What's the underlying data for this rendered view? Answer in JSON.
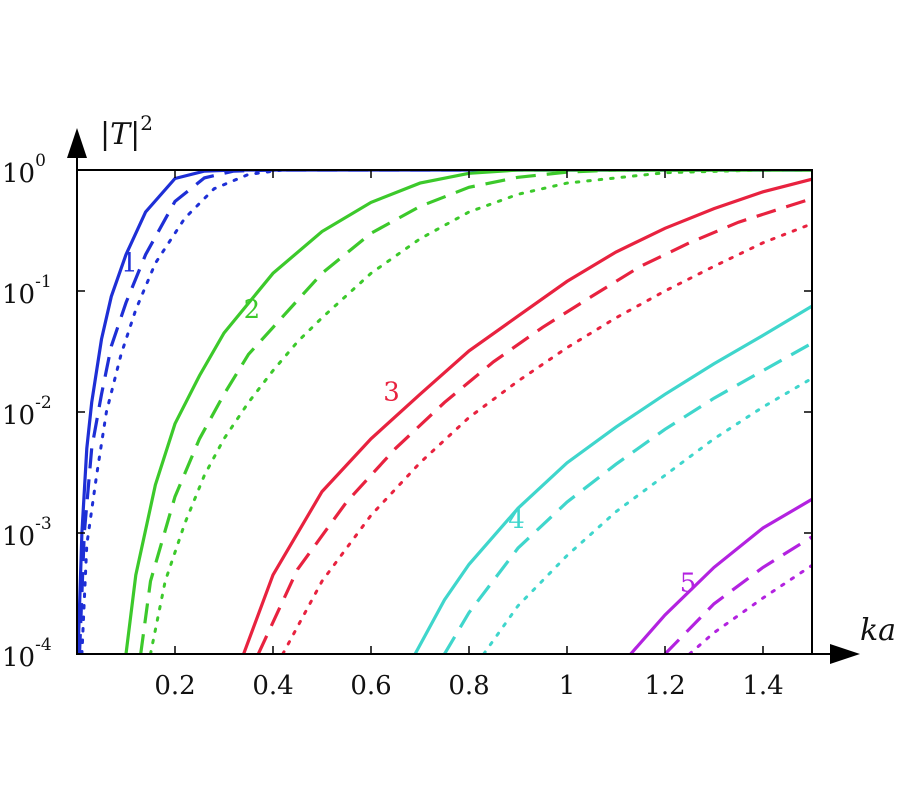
{
  "chart_data": {
    "type": "line",
    "title": "",
    "xlabel": "ka",
    "ylabel_main": "|T|",
    "ylabel_sup": "2",
    "xlim": [
      0.0,
      1.5
    ],
    "ylim": [
      0.0001,
      1
    ],
    "yscale": "log",
    "grid": false,
    "x_ticks": [
      {
        "value": 0.2,
        "label": "0.2"
      },
      {
        "value": 0.4,
        "label": "0.4"
      },
      {
        "value": 0.6,
        "label": "0.6"
      },
      {
        "value": 0.8,
        "label": "0.8"
      },
      {
        "value": 1.0,
        "label": "1"
      },
      {
        "value": 1.2,
        "label": "1.2"
      },
      {
        "value": 1.4,
        "label": "1.4"
      }
    ],
    "y_ticks": [
      {
        "value": 1,
        "base": "10",
        "exp": "0"
      },
      {
        "value": 0.1,
        "base": "10",
        "exp": "-1"
      },
      {
        "value": 0.01,
        "base": "10",
        "exp": "-2"
      },
      {
        "value": 0.001,
        "base": "10",
        "exp": "-3"
      },
      {
        "value": 0.0001,
        "base": "10",
        "exp": "-4"
      }
    ],
    "groups": [
      {
        "label": "1",
        "color": "#1e2fd6",
        "label_x": 0.09,
        "label_y": 0.145,
        "series": [
          {
            "style": "solid",
            "points": [
              [
                0.002,
                0.0001
              ],
              [
                0.01,
                0.001
              ],
              [
                0.02,
                0.005
              ],
              [
                0.03,
                0.012
              ],
              [
                0.05,
                0.04
              ],
              [
                0.07,
                0.09
              ],
              [
                0.1,
                0.2
              ],
              [
                0.14,
                0.45
              ],
              [
                0.2,
                0.85
              ],
              [
                0.26,
                0.98
              ],
              [
                0.32,
                1.0
              ],
              [
                1.5,
                1.0
              ]
            ]
          },
          {
            "style": "dashed",
            "points": [
              [
                0.005,
                0.0001
              ],
              [
                0.015,
                0.001
              ],
              [
                0.03,
                0.005
              ],
              [
                0.05,
                0.014
              ],
              [
                0.07,
                0.035
              ],
              [
                0.1,
                0.08
              ],
              [
                0.14,
                0.2
              ],
              [
                0.2,
                0.55
              ],
              [
                0.26,
                0.86
              ],
              [
                0.32,
                0.98
              ],
              [
                0.4,
                1.0
              ],
              [
                1.5,
                1.0
              ]
            ]
          },
          {
            "style": "dotted",
            "points": [
              [
                0.01,
                0.0001
              ],
              [
                0.02,
                0.0008
              ],
              [
                0.04,
                0.003
              ],
              [
                0.06,
                0.01
              ],
              [
                0.09,
                0.03
              ],
              [
                0.12,
                0.07
              ],
              [
                0.16,
                0.17
              ],
              [
                0.22,
                0.4
              ],
              [
                0.28,
                0.7
              ],
              [
                0.35,
                0.92
              ],
              [
                0.42,
                1.0
              ],
              [
                1.5,
                1.0
              ]
            ]
          }
        ]
      },
      {
        "label": "2",
        "color": "#3cc92b",
        "label_x": 0.34,
        "label_y": 0.06,
        "series": [
          {
            "style": "solid",
            "points": [
              [
                0.1,
                0.0001
              ],
              [
                0.12,
                0.00045
              ],
              [
                0.16,
                0.0025
              ],
              [
                0.2,
                0.008
              ],
              [
                0.25,
                0.02
              ],
              [
                0.3,
                0.045
              ],
              [
                0.4,
                0.14
              ],
              [
                0.5,
                0.31
              ],
              [
                0.6,
                0.54
              ],
              [
                0.7,
                0.78
              ],
              [
                0.8,
                0.94
              ],
              [
                0.9,
                1.0
              ],
              [
                1.5,
                1.0
              ]
            ]
          },
          {
            "style": "dashed",
            "points": [
              [
                0.13,
                0.0001
              ],
              [
                0.15,
                0.0004
              ],
              [
                0.2,
                0.002
              ],
              [
                0.25,
                0.006
              ],
              [
                0.3,
                0.014
              ],
              [
                0.35,
                0.03
              ],
              [
                0.4,
                0.05
              ],
              [
                0.5,
                0.14
              ],
              [
                0.6,
                0.3
              ],
              [
                0.7,
                0.5
              ],
              [
                0.8,
                0.72
              ],
              [
                0.9,
                0.87
              ],
              [
                1.0,
                0.96
              ],
              [
                1.1,
                1.0
              ],
              [
                1.5,
                1.0
              ]
            ]
          },
          {
            "style": "dotted",
            "points": [
              [
                0.15,
                0.0001
              ],
              [
                0.18,
                0.0004
              ],
              [
                0.22,
                0.0012
              ],
              [
                0.26,
                0.003
              ],
              [
                0.3,
                0.006
              ],
              [
                0.35,
                0.012
              ],
              [
                0.4,
                0.022
              ],
              [
                0.45,
                0.038
              ],
              [
                0.5,
                0.06
              ],
              [
                0.6,
                0.14
              ],
              [
                0.7,
                0.27
              ],
              [
                0.8,
                0.45
              ],
              [
                0.9,
                0.63
              ],
              [
                1.0,
                0.78
              ],
              [
                1.2,
                0.95
              ],
              [
                1.4,
                1.0
              ],
              [
                1.5,
                1.0
              ]
            ]
          }
        ]
      },
      {
        "label": "3",
        "color": "#e8223f",
        "label_x": 0.625,
        "label_y": 0.0125,
        "series": [
          {
            "style": "solid",
            "points": [
              [
                0.34,
                0.0001
              ],
              [
                0.4,
                0.00045
              ],
              [
                0.5,
                0.0022
              ],
              [
                0.6,
                0.006
              ],
              [
                0.7,
                0.014
              ],
              [
                0.8,
                0.032
              ],
              [
                0.9,
                0.062
              ],
              [
                1.0,
                0.12
              ],
              [
                1.1,
                0.21
              ],
              [
                1.2,
                0.33
              ],
              [
                1.3,
                0.48
              ],
              [
                1.4,
                0.66
              ],
              [
                1.5,
                0.84
              ]
            ]
          },
          {
            "style": "dashed",
            "points": [
              [
                0.37,
                0.0001
              ],
              [
                0.45,
                0.0005
              ],
              [
                0.55,
                0.0018
              ],
              [
                0.65,
                0.005
              ],
              [
                0.75,
                0.012
              ],
              [
                0.85,
                0.026
              ],
              [
                0.95,
                0.05
              ],
              [
                1.05,
                0.09
              ],
              [
                1.15,
                0.16
              ],
              [
                1.25,
                0.25
              ],
              [
                1.35,
                0.37
              ],
              [
                1.45,
                0.5
              ],
              [
                1.5,
                0.58
              ]
            ]
          },
          {
            "style": "dotted",
            "points": [
              [
                0.42,
                0.0001
              ],
              [
                0.5,
                0.0004
              ],
              [
                0.6,
                0.0014
              ],
              [
                0.7,
                0.0038
              ],
              [
                0.8,
                0.009
              ],
              [
                0.9,
                0.018
              ],
              [
                1.0,
                0.034
              ],
              [
                1.1,
                0.06
              ],
              [
                1.2,
                0.1
              ],
              [
                1.3,
                0.16
              ],
              [
                1.4,
                0.25
              ],
              [
                1.5,
                0.36
              ]
            ]
          }
        ]
      },
      {
        "label": "4",
        "color": "#3fd6cc",
        "label_x": 0.88,
        "label_y": 0.0011,
        "series": [
          {
            "style": "solid",
            "points": [
              [
                0.69,
                0.0001
              ],
              [
                0.75,
                0.00028
              ],
              [
                0.8,
                0.00055
              ],
              [
                0.9,
                0.0016
              ],
              [
                1.0,
                0.0038
              ],
              [
                1.1,
                0.0075
              ],
              [
                1.2,
                0.014
              ],
              [
                1.3,
                0.025
              ],
              [
                1.4,
                0.043
              ],
              [
                1.5,
                0.075
              ]
            ]
          },
          {
            "style": "dashed",
            "points": [
              [
                0.75,
                0.0001
              ],
              [
                0.8,
                0.00022
              ],
              [
                0.9,
                0.00075
              ],
              [
                1.0,
                0.0018
              ],
              [
                1.1,
                0.0037
              ],
              [
                1.2,
                0.0072
              ],
              [
                1.3,
                0.013
              ],
              [
                1.4,
                0.022
              ],
              [
                1.5,
                0.037
              ]
            ]
          },
          {
            "style": "dotted",
            "points": [
              [
                0.83,
                0.0001
              ],
              [
                0.9,
                0.00025
              ],
              [
                1.0,
                0.00065
              ],
              [
                1.1,
                0.0015
              ],
              [
                1.2,
                0.003
              ],
              [
                1.3,
                0.006
              ],
              [
                1.4,
                0.011
              ],
              [
                1.5,
                0.019
              ]
            ]
          }
        ]
      },
      {
        "label": "5",
        "color": "#b322e0",
        "label_x": 1.23,
        "label_y": 0.00033,
        "series": [
          {
            "style": "solid",
            "points": [
              [
                1.13,
                0.0001
              ],
              [
                1.2,
                0.00021
              ],
              [
                1.3,
                0.00052
              ],
              [
                1.4,
                0.0011
              ],
              [
                1.5,
                0.0019
              ]
            ]
          },
          {
            "style": "dashed",
            "points": [
              [
                1.2,
                0.0001
              ],
              [
                1.3,
                0.00026
              ],
              [
                1.4,
                0.00052
              ],
              [
                1.5,
                0.00093
              ]
            ]
          },
          {
            "style": "dotted",
            "points": [
              [
                1.25,
                0.0001
              ],
              [
                1.3,
                0.00015
              ],
              [
                1.4,
                0.00029
              ],
              [
                1.5,
                0.00054
              ]
            ]
          }
        ]
      }
    ]
  }
}
